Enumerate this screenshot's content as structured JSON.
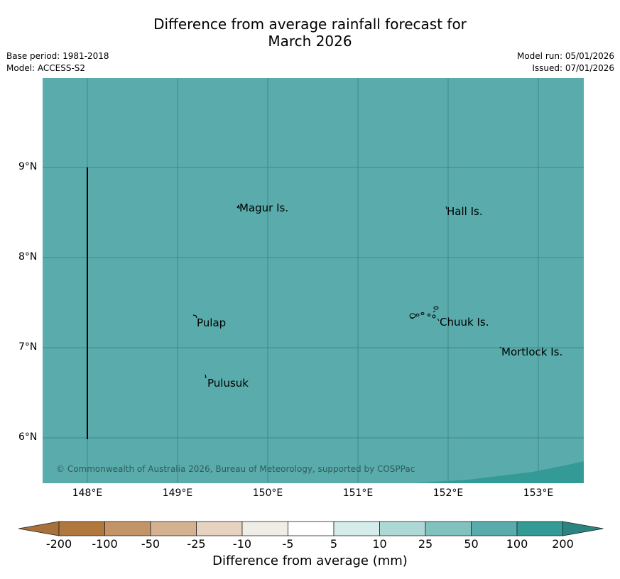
{
  "header": {
    "title_line1": "Difference from average rainfall forecast for",
    "title_line2": "March 2026",
    "base_period": "Base period: 1981-2018",
    "model": "Model: ACCESS-S2",
    "model_run": "Model run: 05/01/2026",
    "issued": "Issued: 07/01/2026"
  },
  "map": {
    "fill_color": "#5aabab",
    "lat_ticks": [
      "9°N",
      "8°N",
      "7°N",
      "6°N"
    ],
    "lon_ticks": [
      "148°E",
      "149°E",
      "150°E",
      "151°E",
      "152°E",
      "153°E"
    ],
    "places": [
      "Magur Is.",
      "Hall Is.",
      "Pulap",
      "Chuuk Is.",
      "Mortlock Is.",
      "Pulusuk"
    ],
    "copyright": "© Commonwealth of Australia 2026, Bureau of Meteorology, supported by COSPPac"
  },
  "colorbar": {
    "title": "Difference from average (mm)",
    "tick_labels": [
      "-200",
      "-100",
      "-50",
      "-25",
      "-10",
      "-5",
      "5",
      "10",
      "25",
      "50",
      "100",
      "200"
    ],
    "colors": [
      "#a8703a",
      "#b2773d",
      "#c39468",
      "#d4b291",
      "#e6d2bf",
      "#f0ede6",
      "#ffffff",
      "#d6ecea",
      "#aed8d5",
      "#82c2be",
      "#5aabab",
      "#339a96",
      "#2a8580"
    ]
  }
}
